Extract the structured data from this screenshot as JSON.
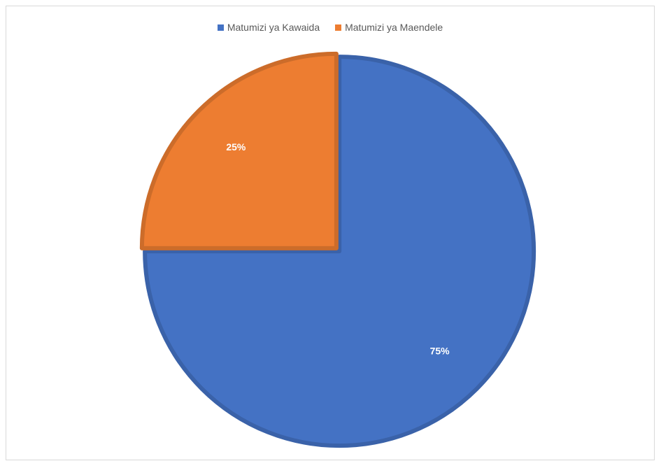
{
  "chart_data": {
    "type": "pie",
    "title": "",
    "categories": [
      "Matumizi ya Kawaida",
      "Matumizi ya Maendele"
    ],
    "values": [
      75,
      25
    ],
    "data_labels": [
      "75%",
      "25%"
    ],
    "colors": [
      "#4472c4",
      "#ed7d31"
    ],
    "legend_position": "top",
    "start_angle_deg": 0,
    "direction": "clockwise"
  }
}
